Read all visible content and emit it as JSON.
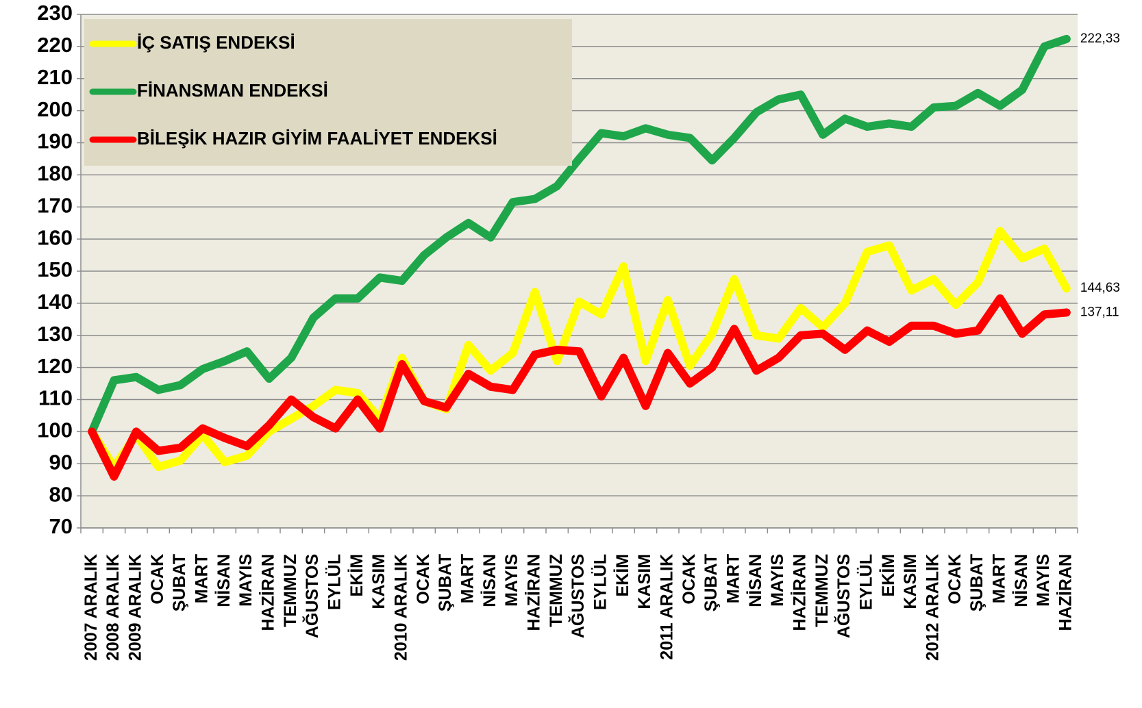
{
  "chart_data": {
    "type": "line",
    "categories": [
      "2007 ARALIK",
      "2008 ARALIK",
      "2009 ARALIK",
      "OCAK",
      "ŞUBAT",
      "MART",
      "NİSAN",
      "MAYIS",
      "HAZİRAN",
      "TEMMUZ",
      "AĞUSTOS",
      "EYLÜL",
      "EKİM",
      "KASIM",
      "2010 ARALIK",
      "OCAK",
      "ŞUBAT",
      "MART",
      "NİSAN",
      "MAYIS",
      "HAZİRAN",
      "TEMMUZ",
      "AĞUSTOS",
      "EYLÜL",
      "EKİM",
      "KASIM",
      "2011 ARALIK",
      "OCAK",
      "ŞUBAT",
      "MART",
      "NİSAN",
      "MAYIS",
      "HAZİRAN",
      "TEMMUZ",
      "AĞUSTOS",
      "EYLÜL",
      "EKİM",
      "KASIM",
      "2012 ARALIK",
      "OCAK",
      "ŞUBAT",
      "MART",
      "NİSAN",
      "MAYIS",
      "HAZİRAN"
    ],
    "series": [
      {
        "name": "İÇ SATIŞ ENDEKSİ",
        "color": "#ffff00",
        "values": [
          100,
          89,
          99,
          89,
          91,
          99,
          90.5,
          92.5,
          100,
          104,
          108,
          113,
          112,
          104,
          123,
          109.5,
          107,
          127,
          119,
          124.5,
          143.5,
          122,
          140.5,
          136.5,
          151.5,
          122,
          141,
          120.5,
          130.5,
          147.5,
          130,
          129,
          138.5,
          132.5,
          140,
          156,
          158,
          144,
          147.5,
          139.5,
          146.5,
          162.5,
          154,
          157,
          144.63
        ],
        "value_labels": [
          null,
          null,
          null,
          null,
          null,
          null,
          null,
          null,
          null,
          null,
          null,
          null,
          null,
          null,
          null,
          null,
          null,
          null,
          null,
          null,
          null,
          null,
          null,
          null,
          null,
          null,
          null,
          null,
          null,
          null,
          null,
          null,
          null,
          null,
          null,
          null,
          null,
          null,
          null,
          null,
          null,
          null,
          null,
          null,
          "144,63"
        ]
      },
      {
        "name": "FİNANSMAN ENDEKSİ",
        "color": "#1fa64a",
        "values": [
          100,
          116,
          117,
          113,
          114.5,
          119.5,
          122,
          125,
          116.5,
          123,
          135.5,
          141.5,
          141.5,
          148,
          147,
          155,
          160.5,
          165,
          160.5,
          171.5,
          172.5,
          176.5,
          185,
          193,
          192,
          194.5,
          192.5,
          191.5,
          184.5,
          191.5,
          199.5,
          203.5,
          205,
          192.5,
          197.5,
          195,
          196,
          195,
          201,
          201.5,
          205.5,
          201.5,
          206.5,
          220,
          222.33
        ],
        "value_labels": [
          null,
          null,
          null,
          null,
          null,
          null,
          null,
          null,
          null,
          null,
          null,
          null,
          null,
          null,
          null,
          null,
          null,
          null,
          null,
          null,
          null,
          null,
          null,
          null,
          null,
          null,
          null,
          null,
          null,
          null,
          null,
          null,
          null,
          null,
          null,
          null,
          null,
          null,
          null,
          null,
          null,
          null,
          null,
          null,
          "222,33"
        ]
      },
      {
        "name": "BİLEŞİK HAZIR GİYİM FAALİYET ENDEKSİ",
        "color": "#ff0000",
        "values": [
          100,
          86,
          100,
          94,
          95,
          101,
          98,
          95.5,
          102,
          110,
          104.5,
          101,
          110,
          101,
          121,
          109.5,
          107.5,
          118,
          114,
          113,
          124,
          125.5,
          125,
          111,
          123,
          108,
          124.5,
          115,
          120,
          132,
          119,
          123,
          130,
          130.5,
          125.5,
          131.5,
          128,
          133,
          133,
          130.5,
          131.5,
          141.5,
          130.5,
          136.5,
          137.11
        ],
        "value_labels": [
          null,
          null,
          null,
          null,
          null,
          null,
          null,
          null,
          null,
          null,
          null,
          null,
          null,
          null,
          null,
          null,
          null,
          null,
          null,
          null,
          null,
          null,
          null,
          null,
          null,
          null,
          null,
          null,
          null,
          null,
          null,
          null,
          null,
          null,
          null,
          null,
          null,
          null,
          null,
          null,
          null,
          null,
          null,
          null,
          "137,11"
        ]
      }
    ],
    "ylim": [
      70,
      230
    ],
    "yticks": [
      70,
      80,
      90,
      100,
      110,
      120,
      130,
      140,
      150,
      160,
      170,
      180,
      190,
      200,
      210,
      220,
      230
    ],
    "grid": true
  }
}
